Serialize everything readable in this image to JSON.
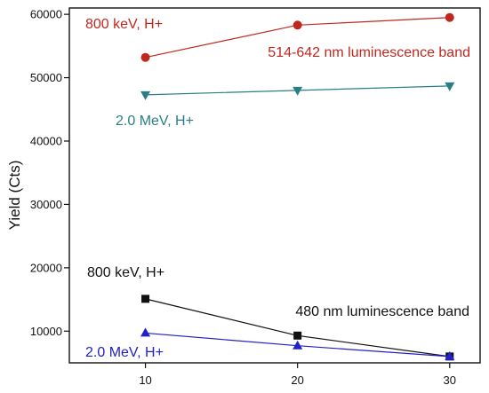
{
  "chart_data": {
    "type": "line",
    "title": "",
    "xlabel": "",
    "ylabel": "Yield (Cts)",
    "xlim": [
      5,
      32
    ],
    "ylim": [
      5000,
      61000
    ],
    "x_ticks": [
      "10",
      "20",
      "30"
    ],
    "y_ticks": [
      "10000",
      "20000",
      "30000",
      "40000",
      "50000",
      "60000"
    ],
    "grid": false,
    "series": [
      {
        "color": "#c0281f",
        "marker": "circle",
        "points": [
          {
            "x": 10,
            "y": 53200
          },
          {
            "x": 20,
            "y": 58300
          },
          {
            "x": 30,
            "y": 59500
          }
        ]
      },
      {
        "color": "#2a7f86",
        "marker": "triangle-down",
        "points": [
          {
            "x": 10,
            "y": 47300
          },
          {
            "x": 20,
            "y": 48000
          },
          {
            "x": 30,
            "y": 48700
          }
        ]
      },
      {
        "color": "#111111",
        "marker": "square",
        "points": [
          {
            "x": 10,
            "y": 15100
          },
          {
            "x": 20,
            "y": 9300
          },
          {
            "x": 30,
            "y": 6000
          }
        ]
      },
      {
        "color": "#2121c8",
        "marker": "triangle-up",
        "points": [
          {
            "x": 10,
            "y": 9700
          },
          {
            "x": 20,
            "y": 7700
          },
          {
            "x": 30,
            "y": 6000
          }
        ]
      }
    ],
    "annotations": [
      {
        "text": "800 keV, H+",
        "color": "#c0281f"
      },
      {
        "text": "514-642 nm luminescence band",
        "color": "#c0281f"
      },
      {
        "text": "2.0 MeV, H+",
        "color": "#2a7f86"
      },
      {
        "text": "800 keV, H+",
        "color": "#111111"
      },
      {
        "text": "480 nm luminescence band",
        "color": "#111111"
      },
      {
        "text": "2.0 MeV, H+",
        "color": "#2121c8"
      }
    ]
  }
}
